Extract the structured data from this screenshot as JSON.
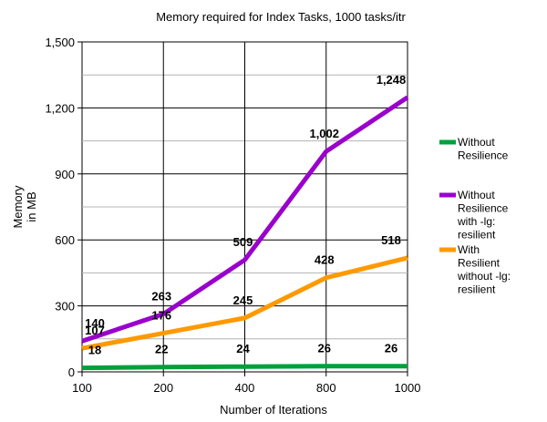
{
  "chart_data": {
    "type": "line",
    "title": "Memory required for Index Tasks, 1000 tasks/itr",
    "xlabel": "Number of Iterations",
    "ylabel": "Memory in MB",
    "x": [
      "100",
      "200",
      "400",
      "800",
      "1000"
    ],
    "ylim": [
      0,
      1500
    ],
    "yticks": [
      "0",
      "300",
      "600",
      "900",
      "1,200",
      "1,500"
    ],
    "grid": true,
    "legend_position": "right",
    "series": [
      {
        "name": "Without Resilience",
        "legend_lines": [
          "Without",
          "Resilience"
        ],
        "color": "#00a03c",
        "values": [
          18,
          22,
          24,
          26,
          26
        ],
        "labels": [
          "18",
          "22",
          "24",
          "26",
          "26"
        ]
      },
      {
        "name": "Without Resilience with -lg: resilient",
        "legend_lines": [
          "Without",
          "Resilience",
          "with -lg:",
          "resilient"
        ],
        "color": "#9a00cc",
        "values": [
          140,
          263,
          509,
          1002,
          1248
        ],
        "labels": [
          "140",
          "263",
          "509",
          "1,002",
          "1,248"
        ]
      },
      {
        "name": "With Resilient without -lg: resilient",
        "legend_lines": [
          "With",
          "Resilient",
          "without -lg:",
          "resilient"
        ],
        "color": "#ff9900",
        "values": [
          107,
          176,
          245,
          428,
          518
        ],
        "labels": [
          "107",
          "176",
          "245",
          "428",
          "518"
        ]
      }
    ]
  }
}
